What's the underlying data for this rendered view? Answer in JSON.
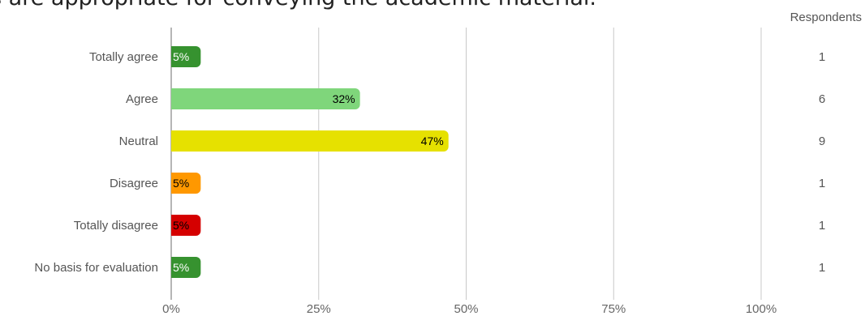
{
  "page": {
    "title": "s are appropriate for conveying the academic material.",
    "respondents_header": "Respondents"
  },
  "chart_data": {
    "type": "bar",
    "orientation": "horizontal",
    "categories": [
      "Totally agree",
      "Agree",
      "Neutral",
      "Disagree",
      "Totally disagree",
      "No basis for evaluation"
    ],
    "values": [
      5,
      32,
      47,
      5,
      5,
      5
    ],
    "value_labels": [
      "5%",
      "32%",
      "47%",
      "5%",
      "5%",
      "5%"
    ],
    "respondents": [
      1,
      6,
      9,
      1,
      1,
      1
    ],
    "colors": [
      "#36922f",
      "#7fd67b",
      "#e6e100",
      "#ff9800",
      "#d50000",
      "#36922f"
    ],
    "label_colors": [
      "#ffffff",
      "#000000",
      "#000000",
      "#000000",
      "#000000",
      "#ffffff"
    ],
    "xlim": [
      0,
      100
    ],
    "xticks": [
      0,
      25,
      50,
      75,
      100
    ],
    "xtick_labels": [
      "0%",
      "25%",
      "50%",
      "75%",
      "100%"
    ],
    "grid": true
  }
}
